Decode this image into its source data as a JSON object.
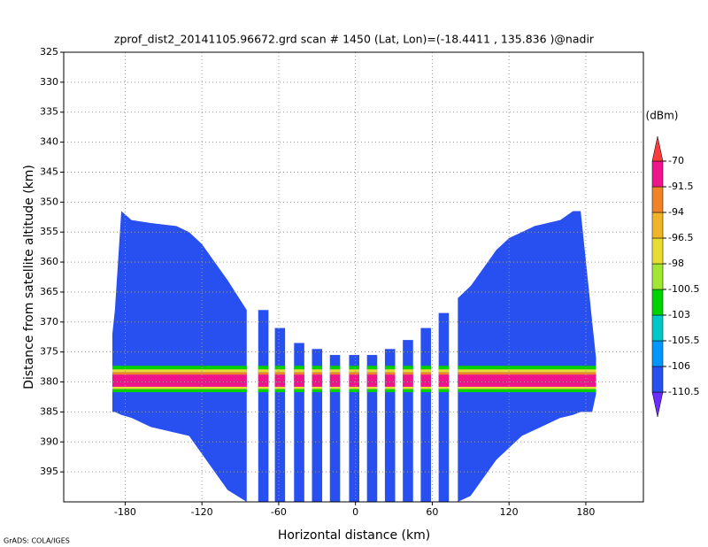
{
  "chart_data": {
    "type": "heatmap",
    "title": "zprof_dist2_20141105.96672.grd  scan # 1450  (Lat, Lon)=(-18.4411 , 135.836 )@nadir",
    "xlabel": "Horizontal distance (km)",
    "ylabel": "Distance from satellite altitude (km)",
    "colorbar_label": "(dBm)",
    "footer": "GrADS: COLA/IGES",
    "xlim": [
      -228,
      225
    ],
    "ylim": [
      400,
      325
    ],
    "xticks": [
      -180,
      -120,
      -60,
      0,
      60,
      120,
      180
    ],
    "yticks": [
      325,
      330,
      335,
      340,
      345,
      350,
      355,
      360,
      365,
      370,
      375,
      380,
      385,
      390,
      395
    ],
    "grid": true,
    "levels": [
      -110.5,
      -106,
      -105.5,
      -103,
      -100.5,
      -98,
      -96.5,
      -94,
      -91.5,
      -70
    ],
    "colors": [
      "#6a2cff",
      "#2850f0",
      "#0096ff",
      "#00c8c8",
      "#00d200",
      "#a0e632",
      "#e6dc32",
      "#f0b428",
      "#f08228",
      "#f0148c",
      "#fa3c3c"
    ],
    "swath_value": -109,
    "left_block": {
      "x": [
        -190,
        -188,
        -183,
        -175,
        -160,
        -140,
        -130,
        -120,
        -110,
        -100,
        -85
      ],
      "top": [
        372,
        368,
        351.5,
        353,
        353.5,
        354,
        355,
        357,
        360,
        363,
        368
      ],
      "bottom": [
        385,
        385,
        385.5,
        386,
        387.5,
        388.5,
        389,
        392,
        395,
        398,
        400
      ]
    },
    "right_block": {
      "x": [
        80,
        90,
        100,
        110,
        120,
        130,
        140,
        150,
        160,
        170,
        176,
        185,
        188
      ],
      "top": [
        366,
        364,
        361,
        358,
        356,
        355,
        354,
        353.5,
        353,
        351.5,
        351.5,
        370,
        376
      ],
      "bottom": [
        400,
        399,
        396,
        393,
        391,
        389,
        388,
        387,
        386,
        385.5,
        385,
        385,
        382
      ]
    },
    "strips": {
      "x": [
        -72,
        -59,
        -44,
        -30,
        -16,
        -1,
        13,
        27,
        41,
        55,
        69
      ],
      "top": [
        368,
        371,
        373.5,
        374.5,
        375.5,
        375.5,
        375.5,
        374.5,
        373,
        371,
        368.5
      ],
      "bottom": [
        400,
        400,
        400,
        400,
        400,
        400,
        400,
        400,
        400,
        400,
        400
      ],
      "width": 8
    },
    "echo_layers": [
      {
        "top": 377.3,
        "bottom": 377.9,
        "value": -101
      },
      {
        "top": 377.9,
        "bottom": 378.4,
        "value": -97
      },
      {
        "top": 378.4,
        "bottom": 378.8,
        "value": -93
      },
      {
        "top": 378.8,
        "bottom": 380.8,
        "value": -80
      },
      {
        "top": 380.8,
        "bottom": 381.2,
        "value": -97
      },
      {
        "top": 381.2,
        "bottom": 381.7,
        "value": -102
      }
    ]
  }
}
